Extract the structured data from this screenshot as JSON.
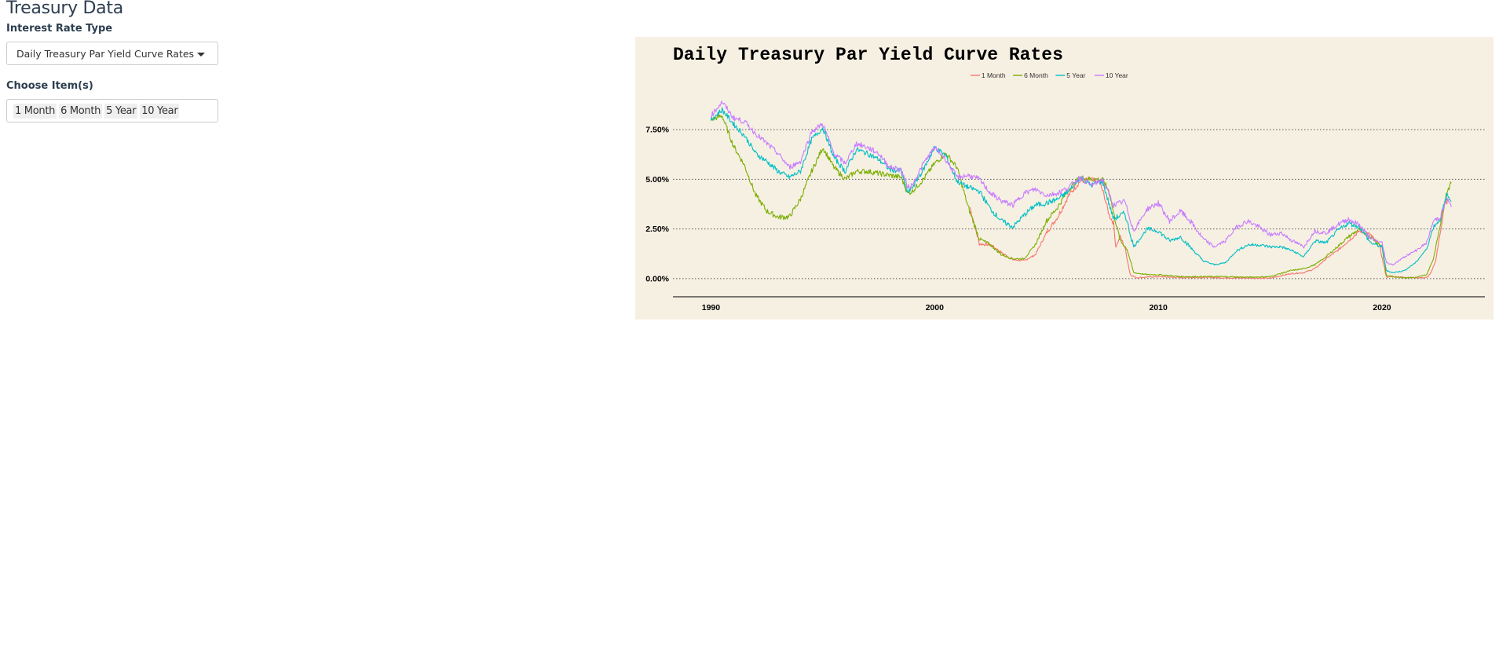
{
  "app": {
    "title": "Treasury Data"
  },
  "controls": {
    "rate_type_label": "Interest Rate Type",
    "rate_type_value": "Daily Treasury Par Yield Curve Rates",
    "items_label": "Choose Item(s)",
    "items_selected": [
      "1 Month",
      "6 Month",
      "5 Year",
      "10 Year"
    ]
  },
  "chart_data": {
    "type": "line",
    "title": "Daily Treasury Par Yield Curve Rates",
    "xlabel": "",
    "ylabel": "",
    "xlim": [
      1988.3,
      2024.6
    ],
    "ylim": [
      -0.4,
      9.6
    ],
    "x_ticks": [
      1990,
      2000,
      2010,
      2020
    ],
    "y_ticks": [
      0,
      2.5,
      5.0,
      7.5
    ],
    "y_tick_labels": [
      "0.00%",
      "2.50%",
      "5.00%",
      "7.50%"
    ],
    "grid": "horizontal dotted",
    "legend_position": "top",
    "background": "#f6f0e3",
    "series": [
      {
        "name": "1 Month",
        "color": "#f8766d",
        "x": [
          2001.58,
          2002.0,
          2002.5,
          2003.0,
          2003.5,
          2004.0,
          2004.5,
          2005.0,
          2005.5,
          2006.0,
          2006.5,
          2007.0,
          2007.4,
          2007.6,
          2007.8,
          2008.0,
          2008.1,
          2008.3,
          2008.5,
          2008.75,
          2009.0,
          2010.0,
          2011.0,
          2012.0,
          2013.0,
          2014.0,
          2015.0,
          2015.9,
          2016.5,
          2017.0,
          2017.5,
          2018.0,
          2018.5,
          2019.0,
          2019.5,
          2019.9,
          2020.2,
          2020.5,
          2021.0,
          2021.5,
          2022.0,
          2022.2,
          2022.4,
          2022.6,
          2022.8,
          2023.0
        ],
        "y": [
          3.6,
          1.75,
          1.7,
          1.3,
          0.95,
          0.9,
          1.2,
          2.3,
          3.1,
          4.2,
          4.9,
          5.0,
          4.8,
          4.1,
          3.2,
          2.8,
          1.6,
          2.1,
          1.6,
          0.2,
          0.05,
          0.1,
          0.05,
          0.06,
          0.04,
          0.03,
          0.02,
          0.25,
          0.3,
          0.5,
          1.0,
          1.4,
          1.9,
          2.4,
          2.2,
          1.6,
          0.08,
          0.1,
          0.07,
          0.05,
          0.05,
          0.3,
          0.9,
          2.3,
          3.7,
          4.0
        ]
      },
      {
        "name": "6 Month",
        "color": "#7cae00",
        "x": [
          1990.0,
          1990.5,
          1991.0,
          1991.5,
          1992.0,
          1992.5,
          1993.0,
          1993.5,
          1994.0,
          1994.5,
          1995.0,
          1995.5,
          1996.0,
          1996.5,
          1997.0,
          1997.5,
          1998.0,
          1998.5,
          1998.8,
          1999.0,
          1999.5,
          2000.0,
          2000.5,
          2001.0,
          2001.5,
          2002.0,
          2002.5,
          2003.0,
          2003.5,
          2004.0,
          2004.5,
          2005.0,
          2005.5,
          2006.0,
          2006.5,
          2007.0,
          2007.5,
          2007.8,
          2008.0,
          2008.3,
          2008.6,
          2008.9,
          2009.5,
          2010.0,
          2011.0,
          2012.0,
          2013.0,
          2014.0,
          2015.0,
          2015.9,
          2016.5,
          2017.0,
          2017.5,
          2018.0,
          2018.5,
          2019.0,
          2019.5,
          2020.0,
          2020.2,
          2020.5,
          2021.0,
          2021.5,
          2022.0,
          2022.3,
          2022.6,
          2022.9,
          2023.1
        ],
        "y": [
          8.0,
          8.2,
          6.7,
          5.7,
          4.2,
          3.4,
          3.1,
          3.1,
          4.0,
          5.4,
          6.6,
          5.6,
          5.0,
          5.4,
          5.4,
          5.3,
          5.2,
          5.1,
          4.3,
          4.4,
          5.0,
          5.8,
          6.3,
          5.6,
          3.6,
          2.0,
          1.7,
          1.2,
          1.0,
          1.0,
          1.7,
          2.9,
          3.6,
          4.5,
          5.1,
          5.0,
          5.0,
          4.4,
          3.3,
          1.9,
          1.5,
          0.3,
          0.2,
          0.2,
          0.1,
          0.1,
          0.1,
          0.07,
          0.1,
          0.4,
          0.5,
          0.7,
          1.1,
          1.6,
          2.1,
          2.5,
          2.1,
          1.6,
          0.15,
          0.1,
          0.05,
          0.05,
          0.2,
          1.0,
          2.7,
          4.4,
          4.8
        ]
      },
      {
        "name": "5 Year",
        "color": "#00bfc4",
        "x": [
          1990.0,
          1990.5,
          1991.0,
          1991.5,
          1992.0,
          1992.5,
          1993.0,
          1993.5,
          1994.0,
          1994.5,
          1995.0,
          1995.5,
          1996.0,
          1996.5,
          1997.0,
          1997.5,
          1998.0,
          1998.5,
          1998.8,
          1999.0,
          1999.5,
          2000.0,
          2000.5,
          2001.0,
          2001.5,
          2002.0,
          2002.5,
          2003.0,
          2003.5,
          2004.0,
          2004.5,
          2005.0,
          2005.5,
          2006.0,
          2006.5,
          2007.0,
          2007.5,
          2008.0,
          2008.5,
          2008.9,
          2009.5,
          2010.0,
          2010.5,
          2011.0,
          2011.5,
          2012.0,
          2012.5,
          2013.0,
          2013.5,
          2014.0,
          2014.5,
          2015.0,
          2015.5,
          2016.0,
          2016.5,
          2017.0,
          2017.5,
          2018.0,
          2018.5,
          2019.0,
          2019.5,
          2020.0,
          2020.2,
          2020.5,
          2021.0,
          2021.5,
          2022.0,
          2022.3,
          2022.6,
          2022.9,
          2023.1
        ],
        "y": [
          8.0,
          8.5,
          7.8,
          7.2,
          6.3,
          5.9,
          5.4,
          5.1,
          5.4,
          7.0,
          7.6,
          6.1,
          5.4,
          6.5,
          6.3,
          6.0,
          5.5,
          5.4,
          4.3,
          4.6,
          5.5,
          6.6,
          6.2,
          4.9,
          4.6,
          4.4,
          3.5,
          2.9,
          2.6,
          3.2,
          3.7,
          3.8,
          4.0,
          4.4,
          5.1,
          4.7,
          4.9,
          3.0,
          3.3,
          1.6,
          2.5,
          2.4,
          1.9,
          2.1,
          1.5,
          0.9,
          0.7,
          0.8,
          1.4,
          1.7,
          1.7,
          1.6,
          1.6,
          1.4,
          1.1,
          1.9,
          1.8,
          2.4,
          2.8,
          2.6,
          1.8,
          1.6,
          0.4,
          0.3,
          0.4,
          0.8,
          1.5,
          2.6,
          3.0,
          4.2,
          3.9
        ]
      },
      {
        "name": "10 Year",
        "color": "#c77cff",
        "x": [
          1990.0,
          1990.5,
          1991.0,
          1991.5,
          1992.0,
          1992.5,
          1993.0,
          1993.5,
          1994.0,
          1994.5,
          1995.0,
          1995.5,
          1996.0,
          1996.5,
          1997.0,
          1997.5,
          1998.0,
          1998.5,
          1998.8,
          1999.0,
          1999.5,
          2000.0,
          2000.5,
          2001.0,
          2001.5,
          2002.0,
          2002.5,
          2003.0,
          2003.5,
          2004.0,
          2004.5,
          2005.0,
          2005.5,
          2006.0,
          2006.5,
          2007.0,
          2007.5,
          2008.0,
          2008.5,
          2008.9,
          2009.5,
          2010.0,
          2010.5,
          2011.0,
          2011.5,
          2012.0,
          2012.5,
          2013.0,
          2013.5,
          2014.0,
          2014.5,
          2015.0,
          2015.5,
          2016.0,
          2016.5,
          2017.0,
          2017.5,
          2018.0,
          2018.5,
          2019.0,
          2019.5,
          2020.0,
          2020.2,
          2020.5,
          2021.0,
          2021.5,
          2022.0,
          2022.3,
          2022.6,
          2022.9,
          2023.1
        ],
        "y": [
          8.2,
          8.9,
          8.1,
          7.9,
          7.3,
          6.8,
          6.3,
          5.6,
          5.9,
          7.4,
          7.8,
          6.3,
          5.8,
          6.8,
          6.6,
          6.3,
          5.6,
          5.5,
          4.6,
          4.7,
          5.8,
          6.6,
          6.0,
          5.1,
          5.2,
          5.0,
          4.3,
          3.9,
          3.7,
          4.3,
          4.5,
          4.2,
          4.3,
          4.6,
          5.1,
          4.7,
          5.0,
          3.7,
          3.9,
          2.4,
          3.5,
          3.8,
          2.9,
          3.4,
          2.8,
          2.0,
          1.6,
          1.9,
          2.6,
          2.9,
          2.6,
          2.2,
          2.3,
          1.9,
          1.6,
          2.4,
          2.3,
          2.7,
          3.0,
          2.7,
          2.0,
          1.8,
          0.8,
          0.7,
          1.1,
          1.4,
          1.8,
          2.9,
          3.1,
          4.0,
          3.6
        ]
      }
    ]
  }
}
